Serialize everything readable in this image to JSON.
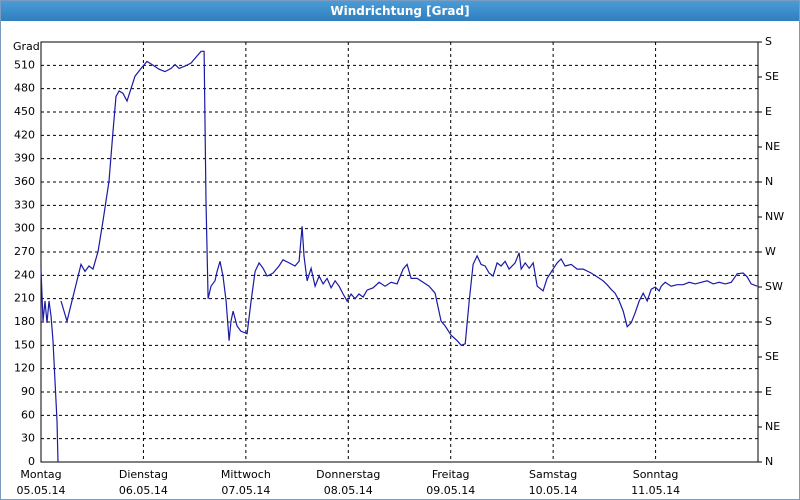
{
  "chart_data": {
    "type": "line",
    "title": "Windrichtung [Grad]",
    "y_label": "Grad",
    "xlim": [
      0,
      7
    ],
    "ylim": [
      0,
      540
    ],
    "y2lim": [
      0,
      540
    ],
    "xticks": [
      {
        "value": 0,
        "label": "Montag"
      },
      {
        "value": 1,
        "label": "Dienstag"
      },
      {
        "value": 2,
        "label": "Mittwoch"
      },
      {
        "value": 3,
        "label": "Donnerstag"
      },
      {
        "value": 4,
        "label": "Freitag"
      },
      {
        "value": 5,
        "label": "Samstag"
      },
      {
        "value": 6,
        "label": "Sonntag"
      }
    ],
    "xtick_dates": [
      "05.05.14",
      "06.05.14",
      "07.05.14",
      "08.05.14",
      "09.05.14",
      "10.05.14",
      "11.05.14"
    ],
    "yticks": [
      0,
      30,
      60,
      90,
      120,
      150,
      180,
      210,
      240,
      270,
      300,
      330,
      360,
      390,
      420,
      450,
      480,
      510
    ],
    "y2ticks": [
      {
        "value": 0,
        "label": "N"
      },
      {
        "value": 45,
        "label": "NE"
      },
      {
        "value": 90,
        "label": "E"
      },
      {
        "value": 135,
        "label": "SE"
      },
      {
        "value": 180,
        "label": "S"
      },
      {
        "value": 225,
        "label": "SW"
      },
      {
        "value": 270,
        "label": "W"
      },
      {
        "value": 315,
        "label": "NW"
      },
      {
        "value": 360,
        "label": "N"
      },
      {
        "value": 405,
        "label": "NE"
      },
      {
        "value": 450,
        "label": "E"
      },
      {
        "value": 495,
        "label": "SE"
      },
      {
        "value": 540,
        "label": "S"
      }
    ],
    "grid": true,
    "series": [
      {
        "color": "#1a1aa6",
        "x": [
          0,
          0.02,
          0.039,
          0.059,
          0.078,
          0.098,
          0.117,
          0.137,
          0.156,
          0.166,
          0.18,
          0.195,
          0.254,
          0.313,
          0.391,
          0.43,
          0.469,
          0.508,
          0.557,
          0.605,
          0.664,
          0.703,
          0.732,
          0.762,
          0.801,
          0.84,
          0.879,
          0.918,
          0.977,
          1.035,
          1.094,
          1.152,
          1.211,
          1.27,
          1.309,
          1.348,
          1.406,
          1.465,
          1.523,
          1.563,
          1.592,
          1.611,
          1.631,
          1.66,
          1.699,
          1.719,
          1.748,
          1.777,
          1.807,
          1.836,
          1.855,
          1.875,
          1.914,
          1.953,
          2.012,
          2.051,
          2.09,
          2.129,
          2.168,
          2.207,
          2.266,
          2.324,
          2.363,
          2.422,
          2.48,
          2.52,
          2.549,
          2.568,
          2.598,
          2.637,
          2.676,
          2.715,
          2.754,
          2.793,
          2.832,
          2.871,
          2.91,
          2.949,
          2.988,
          3.027,
          3.066,
          3.105,
          3.145,
          3.184,
          3.242,
          3.301,
          3.359,
          3.418,
          3.477,
          3.535,
          3.574,
          3.613,
          3.672,
          3.73,
          3.789,
          3.848,
          3.906,
          3.945,
          4.004,
          4.063,
          4.102,
          4.141,
          4.18,
          4.219,
          4.258,
          4.297,
          4.336,
          4.375,
          4.414,
          4.453,
          4.492,
          4.531,
          4.57,
          4.629,
          4.668,
          4.688,
          4.727,
          4.766,
          4.805,
          4.844,
          4.902,
          4.941,
          5.0,
          5.039,
          5.078,
          5.117,
          5.176,
          5.234,
          5.293,
          5.371,
          5.43,
          5.488,
          5.527,
          5.566,
          5.605,
          5.645,
          5.684,
          5.723,
          5.762,
          5.801,
          5.84,
          5.879,
          5.918,
          5.957,
          5.996,
          6.035,
          6.055,
          6.094,
          6.152,
          6.211,
          6.27,
          6.328,
          6.387,
          6.445,
          6.504,
          6.563,
          6.621,
          6.68,
          6.738,
          6.797,
          6.855,
          6.895,
          6.934,
          6.992
        ],
        "values": [
          248,
          181,
          207,
          179,
          207,
          188,
          156,
          104,
          53,
          0,
          null,
          207,
          181,
          213,
          254,
          245,
          252,
          248,
          271,
          310,
          361,
          425,
          470,
          477,
          474,
          464,
          480,
          496,
          506,
          515,
          510,
          505,
          502,
          506,
          511,
          506,
          509,
          513,
          522,
          528,
          528,
          335,
          210,
          226,
          233,
          245,
          258,
          239,
          207,
          156,
          181,
          194,
          175,
          168,
          165,
          207,
          245,
          256,
          249,
          239,
          243,
          252,
          260,
          256,
          252,
          258,
          303,
          265,
          233,
          249,
          226,
          239,
          229,
          236,
          224,
          233,
          226,
          216,
          207,
          216,
          210,
          216,
          212,
          221,
          224,
          231,
          226,
          231,
          229,
          248,
          254,
          236,
          236,
          231,
          226,
          217,
          181,
          175,
          163,
          156,
          150,
          152,
          207,
          254,
          265,
          254,
          252,
          243,
          239,
          256,
          252,
          258,
          248,
          256,
          269,
          248,
          256,
          249,
          256,
          226,
          220,
          236,
          248,
          256,
          261,
          252,
          254,
          248,
          248,
          243,
          238,
          233,
          228,
          222,
          217,
          207,
          194,
          174,
          179,
          192,
          207,
          217,
          207,
          222,
          225,
          220,
          226,
          231,
          226,
          228,
          228,
          231,
          229,
          231,
          233,
          229,
          231,
          229,
          231,
          242,
          243,
          238,
          229,
          226
        ]
      }
    ]
  }
}
